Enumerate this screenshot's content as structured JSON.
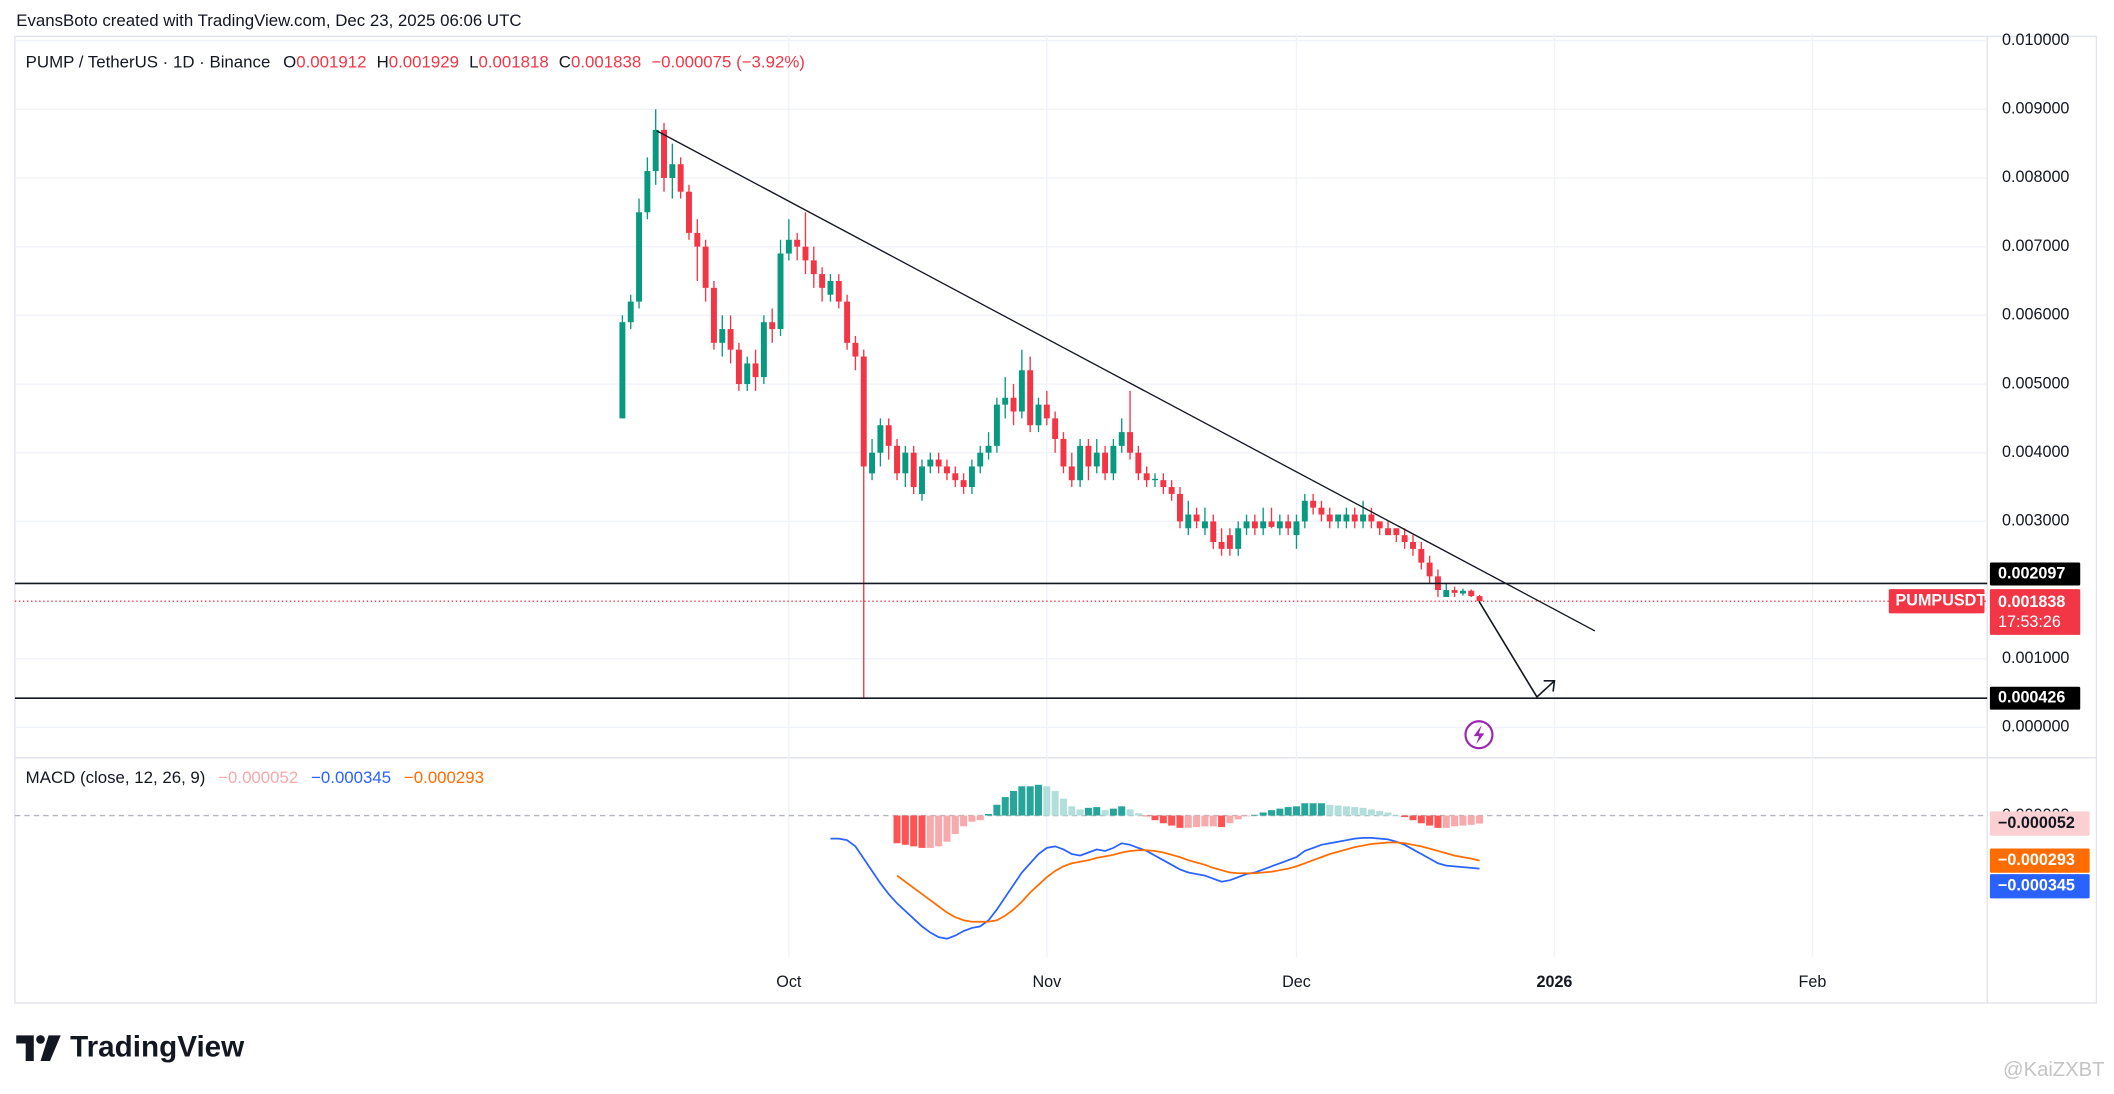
{
  "credit": "EvansBoto created with TradingView.com, Dec 23, 2025 06:06 UTC",
  "brand": "TradingView",
  "watermark": "@KaiZXBT",
  "chart_data": [
    {
      "type": "candlestick",
      "title": "PUMP / TetherUS · 1D · Binance",
      "ohlc_labels": [
        "O",
        "H",
        "L",
        "C"
      ],
      "change": "−0.000075 (−3.92%)",
      "symbol": "PUMPUSDT",
      "countdown": "17:53:26",
      "colors": {
        "up": "#089981",
        "down": "#f23645"
      },
      "grid": true,
      "xlim": [
        -73,
        164
      ],
      "ylim": [
        -0.0004,
        0.0101
      ],
      "yticks": [
        {
          "value": 0,
          "label": "0.000000"
        },
        {
          "value": 0.001,
          "label": "0.001000"
        },
        {
          "value": 0.003,
          "label": "0.003000"
        },
        {
          "value": 0.004,
          "label": "0.004000"
        },
        {
          "value": 0.005,
          "label": "0.005000"
        },
        {
          "value": 0.006,
          "label": "0.006000"
        },
        {
          "value": 0.007,
          "label": "0.007000"
        },
        {
          "value": 0.008,
          "label": "0.008000"
        },
        {
          "value": 0.009,
          "label": "0.009000"
        },
        {
          "value": 0.01,
          "label": "0.010000"
        }
      ],
      "levels": [
        0.002097,
        0.000426
      ],
      "x": [
        0,
        1,
        2,
        3,
        4,
        5,
        6,
        7,
        8,
        9,
        10,
        11,
        12,
        13,
        14,
        15,
        16,
        17,
        18,
        19,
        20,
        21,
        22,
        23,
        24,
        25,
        26,
        27,
        28,
        29,
        30,
        31,
        32,
        33,
        34,
        35,
        36,
        37,
        38,
        39,
        40,
        41,
        42,
        43,
        44,
        45,
        46,
        47,
        48,
        49,
        50,
        51,
        52,
        53,
        54,
        55,
        56,
        57,
        58,
        59,
        60,
        61,
        62,
        63,
        64,
        65,
        66,
        67,
        68,
        69,
        70,
        71,
        72,
        73,
        74,
        75,
        76,
        77,
        78,
        79,
        80,
        81,
        82,
        83,
        84,
        85,
        86,
        87,
        88,
        89,
        90,
        91,
        92,
        93,
        94,
        95,
        96,
        97,
        98,
        99,
        100,
        101,
        102,
        103
      ],
      "open": [
        0.0045,
        0.0059,
        0.0062,
        0.0075,
        0.0081,
        0.0087,
        0.008,
        0.0082,
        0.0078,
        0.0072,
        0.007,
        0.0064,
        0.0056,
        0.0058,
        0.0055,
        0.005,
        0.0053,
        0.0051,
        0.0059,
        0.0058,
        0.0069,
        0.0071,
        0.007,
        0.0068,
        0.0066,
        0.0063,
        0.0065,
        0.0062,
        0.0056,
        0.0054,
        0.0037,
        0.004,
        0.0044,
        0.0041,
        0.0037,
        0.004,
        0.0034,
        0.0038,
        0.0039,
        0.0038,
        0.0037,
        0.0036,
        0.0035,
        0.0038,
        0.004,
        0.0041,
        0.0047,
        0.0048,
        0.0046,
        0.0052,
        0.0044,
        0.0047,
        0.0045,
        0.0042,
        0.0038,
        0.0036,
        0.0041,
        0.0038,
        0.004,
        0.0037,
        0.0041,
        0.0043,
        0.004,
        0.0037,
        0.0036,
        0.0036,
        0.0035,
        0.0034,
        0.0029,
        0.0031,
        0.0029,
        0.003,
        0.0027,
        0.0028,
        0.0026,
        0.0029,
        0.003,
        0.0029,
        0.003,
        0.0029,
        0.003,
        0.0028,
        0.003,
        0.0033,
        0.0032,
        0.0031,
        0.003,
        0.003,
        0.0031,
        0.003,
        0.0031,
        0.003,
        0.0029,
        0.0029,
        0.0028,
        0.0027,
        0.0026,
        0.0024,
        0.0022,
        0.0019,
        0.002,
        0.00195,
        0.00199,
        0.001912
      ],
      "high": [
        0.006,
        0.0063,
        0.0077,
        0.0083,
        0.009,
        0.0088,
        0.0085,
        0.0083,
        0.0079,
        0.0074,
        0.0071,
        0.0065,
        0.006,
        0.006,
        0.0056,
        0.0054,
        0.0055,
        0.006,
        0.0061,
        0.0071,
        0.0074,
        0.0072,
        0.0075,
        0.007,
        0.0067,
        0.0066,
        0.0066,
        0.0063,
        0.0057,
        0.0055,
        0.0042,
        0.0045,
        0.0045,
        0.0042,
        0.0041,
        0.0041,
        0.0039,
        0.004,
        0.004,
        0.0039,
        0.0038,
        0.0037,
        0.0039,
        0.0041,
        0.0043,
        0.0048,
        0.0051,
        0.005,
        0.0055,
        0.0054,
        0.0048,
        0.0049,
        0.0046,
        0.0043,
        0.004,
        0.0042,
        0.0042,
        0.0042,
        0.0041,
        0.0042,
        0.0045,
        0.0049,
        0.0041,
        0.0038,
        0.0037,
        0.0037,
        0.0036,
        0.0035,
        0.0033,
        0.0032,
        0.0032,
        0.0031,
        0.0029,
        0.0029,
        0.003,
        0.0031,
        0.0031,
        0.0032,
        0.0032,
        0.0031,
        0.0031,
        0.0031,
        0.0034,
        0.0034,
        0.0033,
        0.0032,
        0.0031,
        0.0032,
        0.0032,
        0.0033,
        0.0032,
        0.003,
        0.003,
        0.0029,
        0.0029,
        0.0028,
        0.0027,
        0.0025,
        0.0023,
        0.0021,
        0.00205,
        0.00202,
        0.00201,
        0.001929
      ],
      "low": [
        0.0045,
        0.0058,
        0.0061,
        0.0074,
        0.0079,
        0.0078,
        0.0077,
        0.0077,
        0.0071,
        0.0065,
        0.0062,
        0.0055,
        0.0054,
        0.0053,
        0.0049,
        0.0049,
        0.0049,
        0.005,
        0.0056,
        0.0057,
        0.0068,
        0.0068,
        0.0066,
        0.0064,
        0.0062,
        0.0062,
        0.0061,
        0.0055,
        0.0052,
        0.00043,
        0.0036,
        0.0038,
        0.0039,
        0.0036,
        0.0035,
        0.0034,
        0.0033,
        0.0037,
        0.0037,
        0.0036,
        0.0035,
        0.0034,
        0.0034,
        0.0037,
        0.0039,
        0.004,
        0.0045,
        0.0044,
        0.0045,
        0.0043,
        0.0043,
        0.0044,
        0.004,
        0.0037,
        0.0035,
        0.0035,
        0.0036,
        0.0037,
        0.0036,
        0.0036,
        0.004,
        0.0039,
        0.0036,
        0.0035,
        0.0035,
        0.0034,
        0.0033,
        0.0029,
        0.0028,
        0.0029,
        0.0028,
        0.0026,
        0.0025,
        0.0025,
        0.0025,
        0.0028,
        0.0028,
        0.0028,
        0.0029,
        0.0028,
        0.0028,
        0.0026,
        0.0029,
        0.0031,
        0.003,
        0.0029,
        0.0029,
        0.0029,
        0.0029,
        0.0029,
        0.0029,
        0.0028,
        0.0028,
        0.0027,
        0.0026,
        0.0025,
        0.0023,
        0.0021,
        0.0019,
        0.0019,
        0.0019,
        0.00192,
        0.0019,
        0.001818
      ],
      "close": [
        0.0059,
        0.0062,
        0.0075,
        0.0081,
        0.0087,
        0.008,
        0.0082,
        0.0078,
        0.0072,
        0.007,
        0.0064,
        0.0056,
        0.0058,
        0.0055,
        0.005,
        0.0053,
        0.0051,
        0.0059,
        0.0058,
        0.0069,
        0.0071,
        0.007,
        0.0068,
        0.0066,
        0.0064,
        0.0065,
        0.0062,
        0.0056,
        0.0054,
        0.0038,
        0.004,
        0.0044,
        0.0041,
        0.0037,
        0.004,
        0.0035,
        0.0038,
        0.0039,
        0.0038,
        0.0037,
        0.0036,
        0.0035,
        0.0038,
        0.004,
        0.0041,
        0.0047,
        0.0048,
        0.0046,
        0.0052,
        0.0044,
        0.0047,
        0.0045,
        0.0042,
        0.0038,
        0.0036,
        0.0041,
        0.0038,
        0.004,
        0.0037,
        0.0041,
        0.0043,
        0.004,
        0.0037,
        0.0036,
        0.00362,
        0.0035,
        0.0034,
        0.003,
        0.0031,
        0.003,
        0.003,
        0.0027,
        0.0026,
        0.0026,
        0.0029,
        0.003,
        0.0029,
        0.003,
        0.00292,
        0.003,
        0.0029,
        0.003,
        0.0033,
        0.0032,
        0.0031,
        0.003,
        0.0031,
        0.0031,
        0.003,
        0.0031,
        0.003,
        0.0029,
        0.0028,
        0.0028,
        0.0027,
        0.0026,
        0.0024,
        0.0022,
        0.002,
        0.002,
        0.00196,
        0.00199,
        0.001913,
        0.001838
      ]
    },
    {
      "type": "macd",
      "title": "MACD (close, 12, 26, 9)",
      "legend_values": [
        "−0.000052",
        "−0.000345",
        "−0.000293"
      ],
      "xlim": [
        -73,
        164
      ],
      "xticks": [
        {
          "value": 20,
          "label": "Oct"
        },
        {
          "value": 51,
          "label": "Nov"
        },
        {
          "value": 81,
          "label": "Dec"
        },
        {
          "value": 112,
          "label": "2026"
        },
        {
          "value": 143,
          "label": "Feb"
        }
      ],
      "ylim": [
        -0.00092,
        0.00035
      ],
      "yticks": [
        {
          "value": 0,
          "label": "0.000000"
        }
      ],
      "x": [
        25,
        26,
        27,
        28,
        29,
        30,
        31,
        32,
        33,
        34,
        35,
        36,
        37,
        38,
        39,
        40,
        41,
        42,
        43,
        44,
        45,
        46,
        47,
        48,
        49,
        50,
        51,
        52,
        53,
        54,
        55,
        56,
        57,
        58,
        59,
        60,
        61,
        62,
        63,
        64,
        65,
        66,
        67,
        68,
        69,
        70,
        71,
        72,
        73,
        74,
        75,
        76,
        77,
        78,
        79,
        80,
        81,
        82,
        83,
        84,
        85,
        86,
        87,
        88,
        89,
        90,
        91,
        92,
        93,
        94,
        95,
        96,
        97,
        98,
        99,
        100,
        101,
        102,
        103
      ],
      "series": [
        {
          "type": "bar",
          "colors": [
            "#26a69a",
            "#b2dfdb",
            "#ff5252",
            "#f7a9ab"
          ],
          "values": [
            null,
            null,
            null,
            null,
            null,
            null,
            null,
            null,
            -0.00018,
            -0.00019,
            -0.0002,
            -0.00021,
            -0.00021,
            -0.0002,
            -0.00017,
            -0.00012,
            -7e-05,
            -4e-05,
            -3e-05,
            1e-05,
            7e-05,
            0.00012,
            0.00016,
            0.00019,
            0.00019,
            0.0002,
            0.00019,
            0.00016,
            0.00011,
            6e-05,
            4e-05,
            5e-05,
            5.5e-05,
            3.5e-05,
            4.5e-05,
            6e-05,
            4e-05,
            1.5e-05,
            -5e-06,
            -3e-05,
            -5e-05,
            -6.5e-05,
            -8e-05,
            -8e-05,
            -7.5e-05,
            -7e-05,
            -7e-05,
            -7.5e-05,
            -5e-05,
            -2.5e-05,
            -5e-06,
            5e-06,
            2e-05,
            3.5e-05,
            4.5e-05,
            5.5e-05,
            6e-05,
            8e-05,
            8e-05,
            8e-05,
            7e-05,
            6.5e-05,
            6e-05,
            5.5e-05,
            5e-05,
            4e-05,
            3e-05,
            2e-05,
            5e-06,
            -1e-05,
            -3e-05,
            -5e-05,
            -6.5e-05,
            -8e-05,
            -8e-05,
            -7e-05,
            -6.5e-05,
            -6e-05,
            -5.2e-05
          ]
        },
        {
          "type": "line",
          "color": "#2962ff",
          "values": [
            -0.00015,
            -0.00015,
            -0.00016,
            -0.0002,
            -0.00028,
            -0.00036,
            -0.00044,
            -0.00051,
            -0.00057,
            -0.00062,
            -0.00067,
            -0.00072,
            -0.00076,
            -0.00079,
            -0.0008,
            -0.00078,
            -0.00075,
            -0.00073,
            -0.00072,
            -0.00068,
            -0.00061,
            -0.00053,
            -0.00045,
            -0.00037,
            -0.00031,
            -0.00025,
            -0.00021,
            -0.0002,
            -0.00022,
            -0.00025,
            -0.00026,
            -0.00024,
            -0.00022,
            -0.00023,
            -0.00021,
            -0.00018,
            -0.00019,
            -0.00021,
            -0.00023,
            -0.00026,
            -0.00029,
            -0.00032,
            -0.00035,
            -0.00037,
            -0.00038,
            -0.00039,
            -0.00041,
            -0.00043,
            -0.00042,
            -0.0004,
            -0.00038,
            -0.00037,
            -0.00035,
            -0.00033,
            -0.00031,
            -0.00029,
            -0.00027,
            -0.00023,
            -0.00021,
            -0.00019,
            -0.00018,
            -0.00017,
            -0.00016,
            -0.00015,
            -0.000145,
            -0.000145,
            -0.00015,
            -0.000155,
            -0.00017,
            -0.00019,
            -0.00022,
            -0.00025,
            -0.00028,
            -0.00031,
            -0.000325,
            -0.00033,
            -0.000335,
            -0.00034,
            -0.000345
          ]
        },
        {
          "type": "line",
          "color": "#ff6d00",
          "values": [
            null,
            null,
            null,
            null,
            null,
            null,
            null,
            null,
            -0.00039,
            -0.00043,
            -0.00047,
            -0.00051,
            -0.00055,
            -0.00059,
            -0.00063,
            -0.00066,
            -0.00068,
            -0.00069,
            -0.00069,
            -0.00069,
            -0.00068,
            -0.00065,
            -0.00061,
            -0.00056,
            -0.0005,
            -0.00045,
            -0.0004,
            -0.00036,
            -0.00033,
            -0.00031,
            -0.0003,
            -0.00029,
            -0.000275,
            -0.000265,
            -0.000255,
            -0.00024,
            -0.00023,
            -0.000225,
            -0.000225,
            -0.00023,
            -0.00024,
            -0.000255,
            -0.00027,
            -0.00029,
            -0.000305,
            -0.00032,
            -0.00034,
            -0.000355,
            -0.00037,
            -0.000375,
            -0.000375,
            -0.000375,
            -0.00037,
            -0.000365,
            -0.000355,
            -0.000345,
            -0.00033,
            -0.00031,
            -0.00029,
            -0.00027,
            -0.00025,
            -0.000235,
            -0.00022,
            -0.000205,
            -0.000195,
            -0.000185,
            -0.00018,
            -0.000175,
            -0.000175,
            -0.00018,
            -0.00019,
            -0.0002,
            -0.000215,
            -0.00023,
            -0.000245,
            -0.00026,
            -0.00027,
            -0.00028,
            -0.000293
          ]
        }
      ]
    }
  ]
}
